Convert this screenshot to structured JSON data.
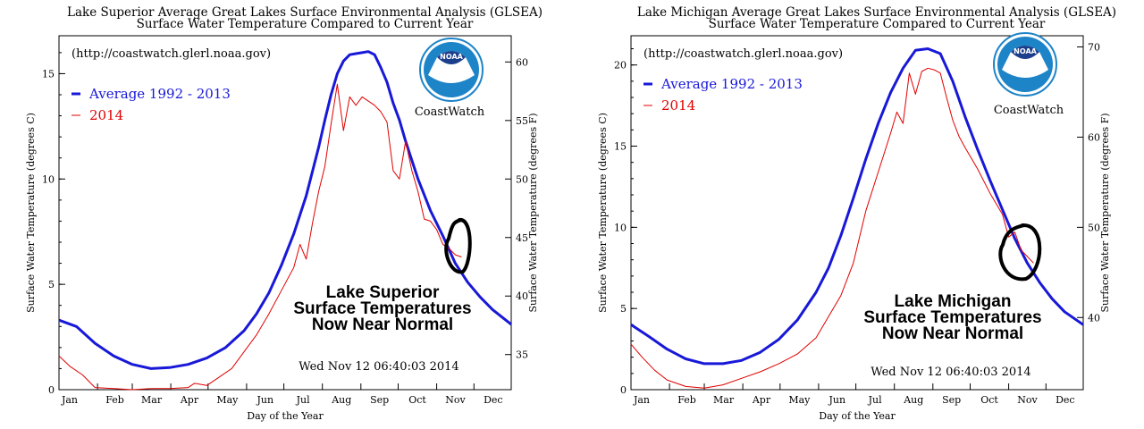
{
  "colors": {
    "average": "#1818d8",
    "current": "#e00000",
    "noaa_blue": "#1e84c8",
    "noaa_navy": "#1c3f8c"
  },
  "logo": {
    "icon": "noaa-logo-icon",
    "text": "NOAA"
  },
  "chart_data": [
    {
      "type": "line",
      "title": "Lake Superior Average Great Lakes Surface Environmental Analysis (GLSEA)",
      "subtitle": "Surface Water Temperature Compared to Current Year",
      "url": "(http://coastwatch.glerl.noaa.gov)",
      "credit": "CoastWatch",
      "xlabel": "Day of the Year",
      "ylabel": "Surface Water Temperature (degrees C)",
      "ylabel_right": "Surface Water Temperature (degrees F)",
      "months": [
        "Jan",
        "Feb",
        "Mar",
        "Apr",
        "May",
        "Jun",
        "Jul",
        "Aug",
        "Sep",
        "Oct",
        "Nov",
        "Dec"
      ],
      "xlim": [
        1,
        365
      ],
      "ylim": [
        0,
        16.8
      ],
      "yticks": [
        0,
        5,
        10,
        15
      ],
      "yticks_right": [
        35,
        40,
        45,
        50,
        55,
        60
      ],
      "legend_position": "top-left",
      "timestamp": "Wed Nov 12 06:40:03 2014",
      "annotation": [
        "Lake Superior",
        "Surface Temperatures",
        "Now Near Normal"
      ],
      "series": [
        {
          "name": "Average 1992 - 2013",
          "x": [
            1,
            15,
            30,
            45,
            60,
            75,
            90,
            105,
            120,
            135,
            150,
            160,
            170,
            180,
            190,
            200,
            210,
            215,
            220,
            225,
            230,
            235,
            240,
            245,
            250,
            255,
            260,
            265,
            270,
            275,
            280,
            290,
            300,
            310,
            320,
            330,
            340,
            350,
            365
          ],
          "y": [
            3.3,
            3.0,
            2.2,
            1.6,
            1.2,
            1.0,
            1.05,
            1.2,
            1.5,
            2.0,
            2.8,
            3.6,
            4.6,
            5.9,
            7.4,
            9.2,
            11.5,
            12.8,
            14.0,
            15.0,
            15.6,
            15.9,
            15.95,
            16.0,
            16.05,
            15.9,
            15.3,
            14.6,
            13.6,
            12.8,
            11.8,
            10.0,
            8.5,
            7.3,
            6.0,
            5.1,
            4.4,
            3.8,
            3.1
          ]
        },
        {
          "name": "2014",
          "x": [
            1,
            10,
            20,
            30,
            45,
            60,
            75,
            90,
            105,
            110,
            120,
            130,
            140,
            150,
            160,
            170,
            180,
            190,
            195,
            200,
            205,
            210,
            215,
            220,
            225,
            230,
            235,
            240,
            245,
            250,
            255,
            260,
            265,
            270,
            275,
            280,
            285,
            290,
            295,
            300,
            305,
            310,
            315,
            320,
            325
          ],
          "y": [
            1.6,
            1.1,
            0.7,
            0.1,
            0.05,
            0.0,
            0.05,
            0.05,
            0.1,
            0.3,
            0.2,
            0.6,
            1.0,
            1.8,
            2.6,
            3.6,
            4.7,
            5.8,
            6.9,
            6.2,
            7.9,
            9.4,
            10.6,
            12.6,
            14.5,
            12.3,
            13.9,
            13.5,
            13.9,
            13.7,
            13.5,
            13.2,
            12.7,
            10.4,
            10.0,
            11.8,
            10.4,
            9.4,
            8.1,
            8.0,
            7.6,
            6.9,
            6.7,
            6.4,
            6.3
          ]
        }
      ]
    },
    {
      "type": "line",
      "title": "Lake Michigan Average Great Lakes Surface Environmental Analysis (GLSEA)",
      "subtitle": "Surface Water Temperature Compared to Current Year",
      "url": "(http://coastwatch.glerl.noaa.gov)",
      "credit": "CoastWatch",
      "xlabel": "Day of the Year",
      "ylabel": "Surface Water Temperature (degrees C)",
      "ylabel_right": "Surface Water Temperature (degrees F)",
      "months": [
        "Jan",
        "Feb",
        "Mar",
        "Apr",
        "May",
        "Jun",
        "Jul",
        "Aug",
        "Sep",
        "Oct",
        "Nov",
        "Dec"
      ],
      "xlim": [
        1,
        365
      ],
      "ylim": [
        0,
        21.8
      ],
      "yticks": [
        0,
        5,
        10,
        15,
        20
      ],
      "yticks_right": [
        40,
        50,
        60,
        70
      ],
      "legend_position": "top-left",
      "timestamp": "Wed Nov 12 06:40:03 2014",
      "annotation": [
        "Lake Michigan",
        "Surface Temperatures",
        "Now Near Normal"
      ],
      "series": [
        {
          "name": "Average 1992 - 2013",
          "x": [
            1,
            15,
            30,
            45,
            60,
            75,
            90,
            105,
            120,
            135,
            150,
            160,
            170,
            180,
            190,
            200,
            210,
            220,
            230,
            240,
            250,
            260,
            270,
            280,
            290,
            300,
            310,
            320,
            330,
            340,
            350,
            365
          ],
          "y": [
            4.0,
            3.3,
            2.5,
            1.9,
            1.6,
            1.6,
            1.8,
            2.3,
            3.1,
            4.3,
            6.0,
            7.5,
            9.5,
            11.8,
            14.2,
            16.4,
            18.3,
            19.8,
            20.9,
            21.0,
            20.7,
            19.0,
            16.8,
            14.8,
            12.9,
            11.1,
            9.3,
            7.8,
            6.6,
            5.6,
            4.8,
            4.0
          ]
        },
        {
          "name": "2014",
          "x": [
            1,
            10,
            20,
            30,
            45,
            60,
            75,
            90,
            105,
            120,
            135,
            150,
            160,
            170,
            180,
            190,
            200,
            210,
            215,
            220,
            225,
            230,
            235,
            240,
            245,
            250,
            255,
            260,
            265,
            270,
            280,
            290,
            300,
            305,
            310,
            315,
            320,
            325
          ],
          "y": [
            2.8,
            2.0,
            1.2,
            0.6,
            0.2,
            0.1,
            0.3,
            0.7,
            1.1,
            1.6,
            2.2,
            3.2,
            4.5,
            5.8,
            7.8,
            11.0,
            13.4,
            15.8,
            17.1,
            16.4,
            19.5,
            18.2,
            19.6,
            19.8,
            19.7,
            19.5,
            18.0,
            16.6,
            15.6,
            14.9,
            13.6,
            12.1,
            10.8,
            9.4,
            9.7,
            8.6,
            8.2,
            7.8
          ]
        }
      ]
    }
  ]
}
